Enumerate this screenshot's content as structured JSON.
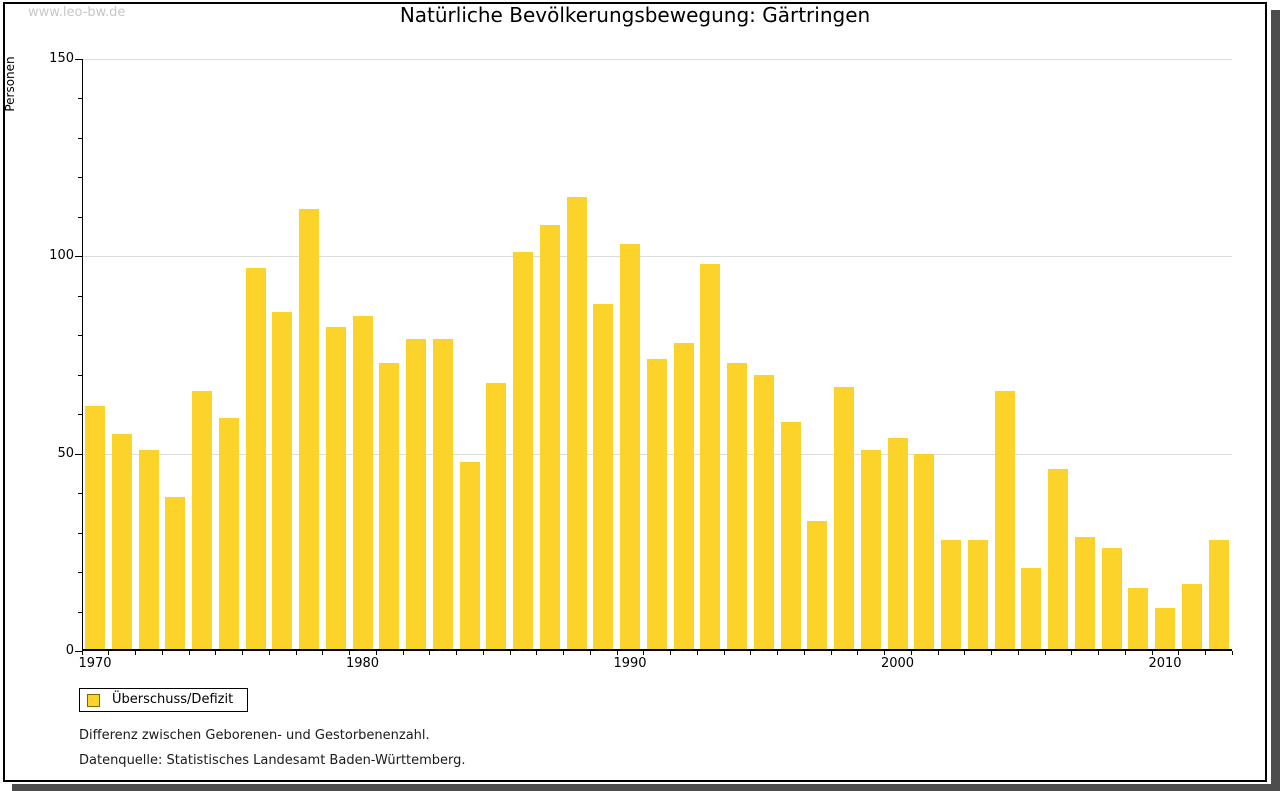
{
  "watermark": "www.leo-bw.de",
  "colors": {
    "bar": "#FCD32B",
    "grid": "#DCDCDC",
    "axis": "#000000",
    "text": "#000000",
    "watermark": "#C8C8C8",
    "shadow": "#4D4D4D",
    "swatch_border": "#7A6900"
  },
  "legend": {
    "label": "Überschuss/Defizit"
  },
  "notes": [
    "Differenz zwischen Geborenen- und Gestorbenenzahl.",
    "Datenquelle: Statistisches Landesamt Baden-Württemberg."
  ],
  "chart_data": {
    "type": "bar",
    "title": "Natürliche Bevölkerungsbewegung: Gärtringen",
    "ylabel": "Personen",
    "xlabel": "",
    "ylim": [
      0,
      150
    ],
    "yticks_major": [
      0,
      50,
      100,
      150
    ],
    "ytick_minor_step": 10,
    "gridline_values": [
      50,
      100,
      150
    ],
    "xtick_labels": [
      1970,
      1980,
      1990,
      2000,
      2010
    ],
    "grid": "horizontal",
    "legend_position": "bottom-left",
    "series_name": "Überschuss/Defizit",
    "x": [
      1970,
      1971,
      1972,
      1973,
      1974,
      1975,
      1976,
      1977,
      1978,
      1979,
      1980,
      1981,
      1982,
      1983,
      1984,
      1985,
      1986,
      1987,
      1988,
      1989,
      1990,
      1991,
      1992,
      1993,
      1994,
      1995,
      1996,
      1997,
      1998,
      1999,
      2000,
      2001,
      2002,
      2003,
      2004,
      2005,
      2006,
      2007,
      2008,
      2009,
      2010,
      2011,
      2012
    ],
    "values": [
      62,
      55,
      51,
      39,
      66,
      59,
      97,
      86,
      112,
      82,
      85,
      73,
      79,
      79,
      48,
      68,
      101,
      108,
      115,
      88,
      103,
      74,
      78,
      98,
      73,
      70,
      58,
      33,
      67,
      51,
      54,
      50,
      28,
      28,
      66,
      21,
      46,
      29,
      26,
      16,
      11,
      17,
      28
    ]
  }
}
